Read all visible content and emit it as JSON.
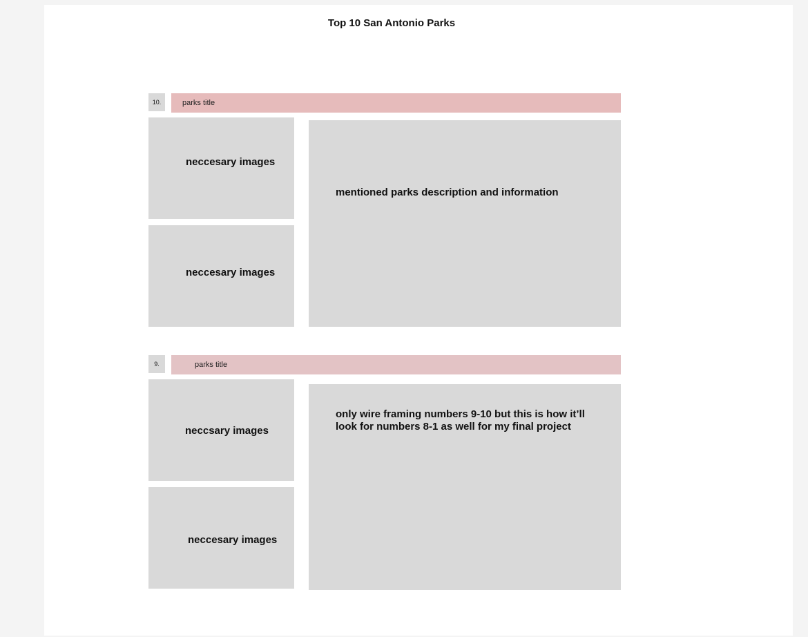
{
  "page": {
    "title": "Top 10 San Antonio Parks"
  },
  "sections": [
    {
      "number": "10.",
      "title": "parks title",
      "title_color": "#e6bbbb",
      "images": [
        "neccesary images",
        "neccesary images"
      ],
      "description": "mentioned parks description and information"
    },
    {
      "number": "9.",
      "title": "parks title",
      "title_color": "#e3c3c5",
      "images": [
        "neccsary images",
        "neccesary images"
      ],
      "description": "only wire framing numbers 9-10 but this is how it’ll look for numbers 8-1 as well for my final project"
    }
  ]
}
